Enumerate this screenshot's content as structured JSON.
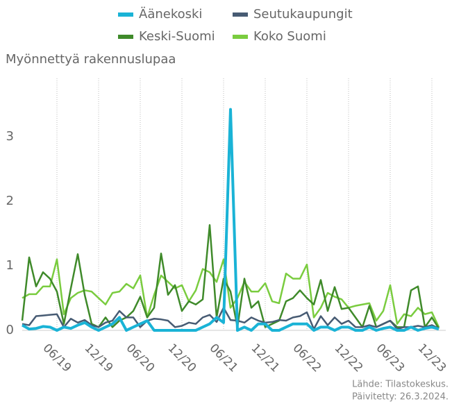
{
  "chart_data": {
    "type": "line",
    "title": "Myönnettyä rakennuslupaa",
    "source": "Lähde: Tilastokeskus.",
    "updated": "Päivitetty: 26.3.2024.",
    "categories": [
      null,
      null,
      null,
      null,
      null,
      "06/19",
      null,
      null,
      null,
      null,
      null,
      "12/19",
      null,
      null,
      null,
      null,
      null,
      "06/20",
      null,
      null,
      null,
      null,
      null,
      "12/20",
      null,
      null,
      null,
      null,
      null,
      "06/21",
      null,
      null,
      null,
      null,
      null,
      "12/21",
      null,
      null,
      null,
      null,
      null,
      "06/22",
      null,
      null,
      null,
      null,
      null,
      "12/22",
      null,
      null,
      null,
      null,
      null,
      "06/23",
      null,
      null,
      null,
      null,
      null,
      "12/23",
      null
    ],
    "series": [
      {
        "name": "Äänekoski",
        "color": "#1ab3d6",
        "values": [
          0.08,
          0.02,
          0.03,
          0.06,
          0.05,
          0,
          0.05,
          0.03,
          0.08,
          0.12,
          0.05,
          0,
          0.05,
          0.1,
          0.2,
          0,
          0.05,
          0.1,
          0.15,
          0,
          0,
          0,
          0,
          0,
          0,
          0,
          0.05,
          0.1,
          0.2,
          0.12,
          3.42,
          0,
          0.05,
          0,
          0.1,
          0.1,
          0,
          0,
          0.05,
          0.1,
          0.1,
          0.1,
          0,
          0.05,
          0.05,
          0,
          0.05,
          0.05,
          0,
          0,
          0.05,
          0,
          0.03,
          0.05,
          0,
          0,
          0.05,
          0,
          0.03,
          0.05,
          0.02
        ]
      },
      {
        "name": "Seutukaupungit",
        "color": "#475b73",
        "values": [
          0.1,
          0.08,
          0.22,
          0.23,
          0.24,
          0.25,
          0.05,
          0.18,
          0.12,
          0.16,
          0.08,
          0.05,
          0.12,
          0.15,
          0.3,
          0.2,
          0.2,
          0.05,
          0.15,
          0.18,
          0.17,
          0.15,
          0.05,
          0.07,
          0.12,
          0.1,
          0.2,
          0.24,
          0.13,
          0.35,
          0.16,
          0.15,
          0.12,
          0.2,
          0.15,
          0.12,
          0.13,
          0.16,
          0.15,
          0.2,
          0.22,
          0.28,
          0.02,
          0.22,
          0.08,
          0.2,
          0.1,
          0.15,
          0.05,
          0.05,
          0.08,
          0.05,
          0.1,
          0.15,
          0.02,
          0.05,
          0.05,
          0.07,
          0.05,
          0.08,
          0.03
        ]
      },
      {
        "name": "Keski-Suomi",
        "color": "#3f8a2a",
        "values": [
          0.15,
          1.13,
          0.68,
          0.9,
          0.8,
          0.6,
          0.1,
          0.65,
          1.18,
          0.55,
          0.1,
          0.05,
          0.2,
          0.05,
          0.15,
          0.2,
          0.3,
          0.52,
          0.2,
          0.35,
          1.19,
          0.55,
          0.7,
          0.3,
          0.45,
          0.4,
          0.48,
          1.63,
          0.2,
          0.8,
          0.6,
          0.05,
          0.8,
          0.35,
          0.45,
          0.05,
          0.1,
          0.15,
          0.45,
          0.5,
          0.62,
          0.5,
          0.4,
          0.78,
          0.3,
          0.67,
          0.33,
          0.35,
          0.2,
          0.05,
          0.38,
          0.05,
          0.1,
          0.15,
          0.05,
          0.05,
          0.62,
          0.68,
          0.05,
          0.2,
          0.03
        ]
      },
      {
        "name": "Koko Suomi",
        "color": "#7acc3f",
        "values": [
          0.5,
          0.56,
          0.56,
          0.68,
          0.68,
          1.1,
          0.25,
          0.5,
          0.58,
          0.62,
          0.6,
          0.5,
          0.4,
          0.58,
          0.6,
          0.72,
          0.65,
          0.85,
          0.2,
          0.55,
          0.85,
          0.75,
          0.65,
          0.7,
          0.45,
          0.62,
          0.95,
          0.9,
          0.75,
          1.1,
          0.35,
          0.5,
          0.75,
          0.6,
          0.6,
          0.73,
          0.45,
          0.42,
          0.88,
          0.8,
          0.8,
          1.02,
          0.2,
          0.35,
          0.58,
          0.52,
          0.48,
          0.35,
          0.38,
          0.4,
          0.42,
          0.15,
          0.3,
          0.7,
          0.1,
          0.25,
          0.22,
          0.35,
          0.25,
          0.28,
          0.05
        ]
      }
    ],
    "ylim": [
      0,
      3.9
    ],
    "yticks": [
      0,
      1,
      2,
      3
    ],
    "grid": "x"
  }
}
